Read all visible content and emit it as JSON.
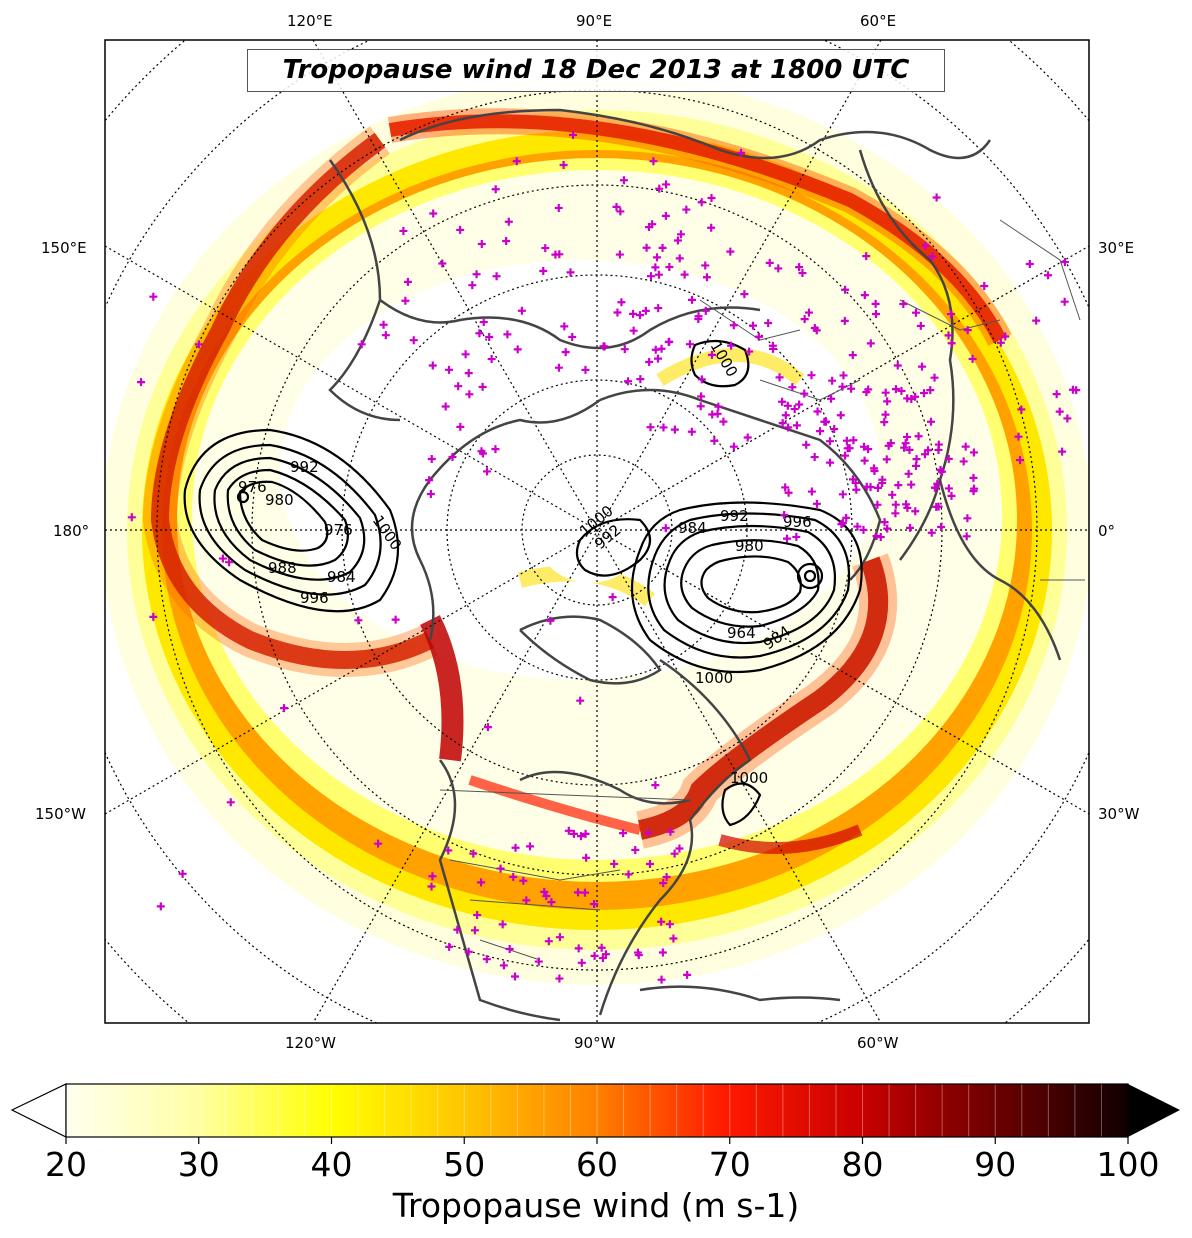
{
  "title": "Tropopause wind 18 Dec 2013 at 1800 UTC",
  "longitude_labels": {
    "top": [
      "120°E",
      "90°E",
      "60°E"
    ],
    "bottom": [
      "120°W",
      "90°W",
      "60°W"
    ],
    "left": [
      "150°E",
      "180°",
      "150°W"
    ],
    "right": [
      "30°E",
      "0°",
      "30°W"
    ]
  },
  "pressure_contour_labels": [
    "992",
    "976",
    "980",
    "976",
    "1000",
    "988",
    "984",
    "996",
    "1000",
    "992",
    "984",
    "992",
    "996",
    "980",
    "964",
    "984",
    "1000",
    "1000",
    "1000"
  ],
  "colorbar": {
    "label": "Tropopause wind (m s-1)",
    "ticks": [
      "20",
      "30",
      "40",
      "50",
      "60",
      "70",
      "80",
      "90",
      "100"
    ],
    "min": 20,
    "max": 100,
    "step": 2
  },
  "colors": {
    "wind_low": "#ffffe6",
    "wind_mid": "#ffff00",
    "wind_high": "#ff0000",
    "wind_max": "#000000",
    "station_marker": "#cc00cc",
    "coastline": "#444444",
    "contour": "#000000"
  }
}
